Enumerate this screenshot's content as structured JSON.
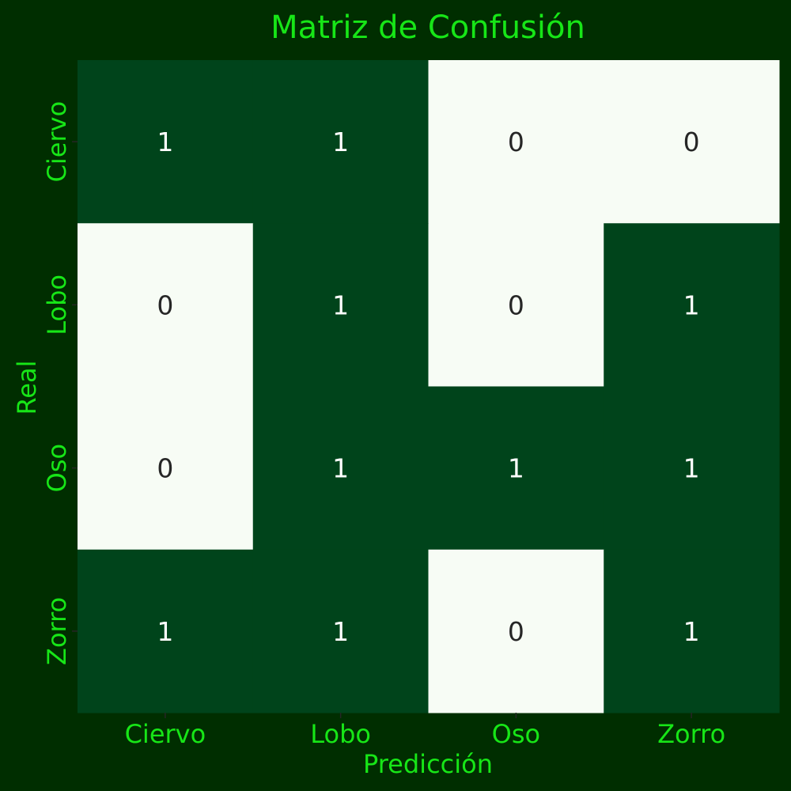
{
  "chart_data": {
    "type": "heatmap",
    "title": "Matriz de Confusión",
    "xlabel": "Predicción",
    "ylabel": "Real",
    "x_categories": [
      "Ciervo",
      "Lobo",
      "Oso",
      "Zorro"
    ],
    "y_categories": [
      "Ciervo",
      "Lobo",
      "Oso",
      "Zorro"
    ],
    "values": [
      [
        1,
        1,
        0,
        0
      ],
      [
        0,
        1,
        0,
        1
      ],
      [
        0,
        1,
        1,
        1
      ],
      [
        1,
        1,
        0,
        1
      ]
    ],
    "value_range": [
      0,
      1
    ],
    "colorbar": false,
    "grid": false
  },
  "colors": {
    "background": "#002e00",
    "text_accent": "#17e617",
    "cell_high": "#00441b",
    "cell_low": "#f7fcf5",
    "annot_on_high": "#ffffff",
    "annot_on_low": "#262626",
    "tick": "#262626"
  }
}
